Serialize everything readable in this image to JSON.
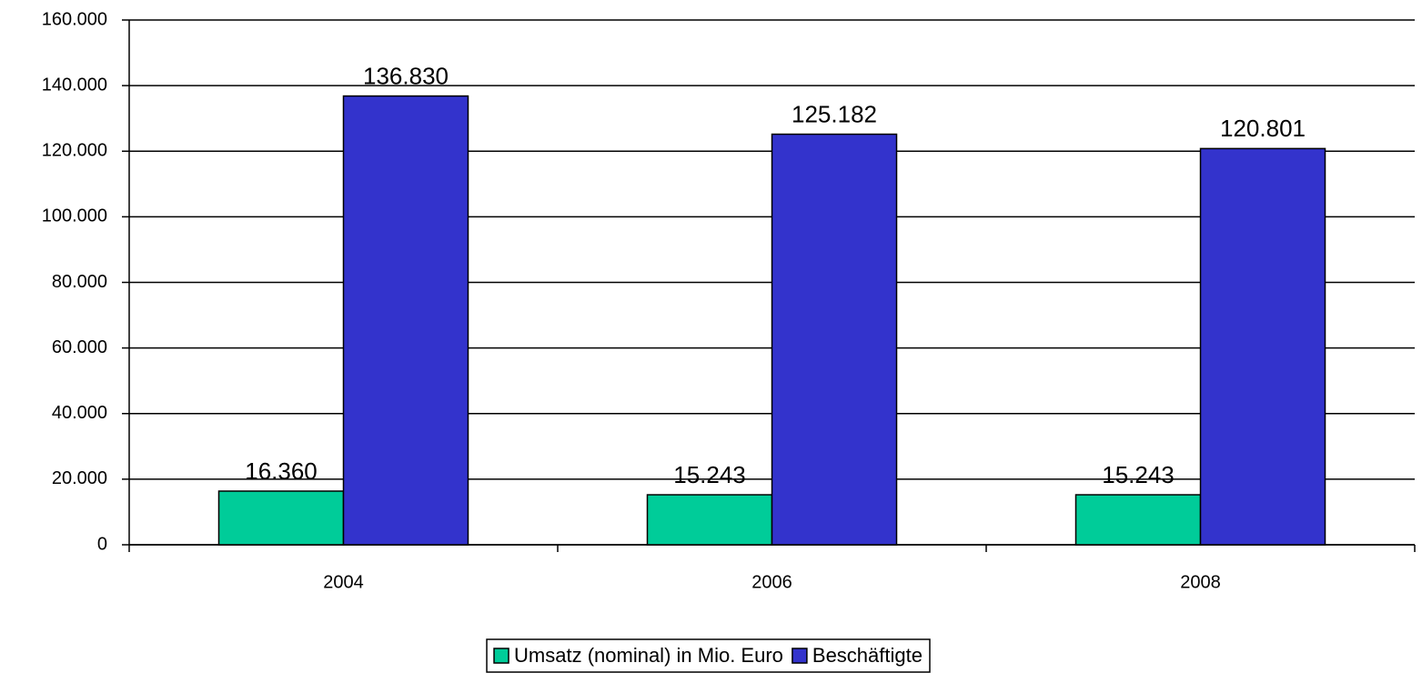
{
  "chart_data": {
    "type": "bar",
    "categories": [
      "2004",
      "2006",
      "2008"
    ],
    "series": [
      {
        "name": "Umsatz (nominal) in Mio. Euro",
        "color": "#00cc99",
        "values": [
          16360,
          15243,
          15243
        ],
        "value_labels": [
          "16.360",
          "15.243",
          "15.243"
        ]
      },
      {
        "name": "Beschäftigte",
        "color": "#3333cc",
        "values": [
          136830,
          125182,
          120801
        ],
        "value_labels": [
          "136.830",
          "125.182",
          "120.801"
        ]
      }
    ],
    "ylim": [
      0,
      160000
    ],
    "yticks": [
      0,
      {
        "value": 20000,
        "label": "20.000"
      },
      {
        "value": 40000,
        "label": "40.000"
      },
      {
        "value": 60000,
        "label": "60.000"
      },
      {
        "value": 80000,
        "label": "80.000"
      },
      {
        "value": 100000,
        "label": "100.000"
      },
      {
        "value": 120000,
        "label": "120.000"
      },
      {
        "value": 140000,
        "label": "140.000"
      },
      {
        "value": 160000,
        "label": "160.000"
      }
    ],
    "grid": true,
    "legend": "bottom"
  }
}
